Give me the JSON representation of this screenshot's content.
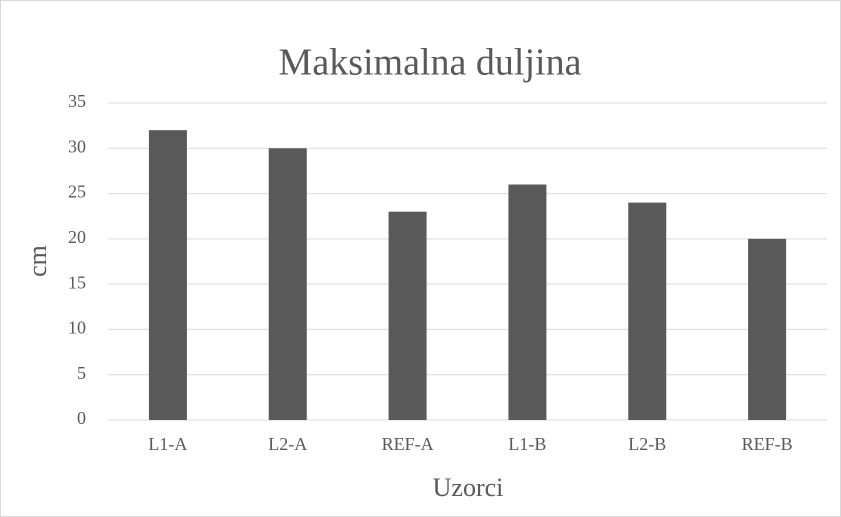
{
  "chart_data": {
    "type": "bar",
    "title": "Maksimalna duljina",
    "x_label": "Uzorci",
    "y_label": "cm",
    "categories": [
      "L1-A",
      "L2-A",
      "REF-A",
      "L1-B",
      "L2-B",
      "REF-B"
    ],
    "values": [
      32,
      30,
      23,
      26,
      24,
      20
    ],
    "color": "#595959",
    "ylim": [
      0,
      35
    ],
    "yticks": [
      0,
      5,
      10,
      15,
      20,
      25,
      30,
      35
    ],
    "grid": true
  }
}
